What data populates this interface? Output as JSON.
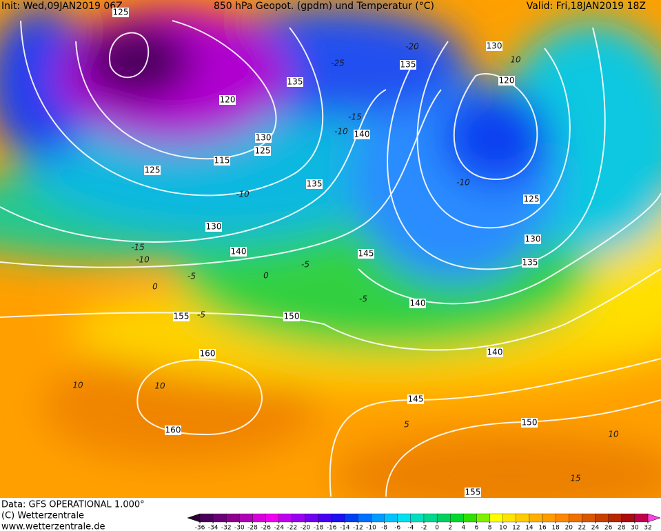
{
  "header": {
    "init": "Init: Wed,09JAN2019 06Z",
    "title": "850 hPa Geopot. (gpdm) und Temperatur (°C)",
    "valid": "Valid: Fri,18JAN2019 18Z"
  },
  "footer": {
    "data": "Data: GFS OPERATIONAL 1.000°",
    "copyright": "(C) Wetterzentrale",
    "url": "www.wetterzentrale.de"
  },
  "colorbar": {
    "labels": [
      -36,
      -34,
      -32,
      -30,
      -28,
      -26,
      -24,
      -22,
      -20,
      -18,
      -16,
      -14,
      -12,
      -10,
      -8,
      -6,
      -4,
      -2,
      0,
      2,
      4,
      6,
      8,
      10,
      12,
      14,
      16,
      18,
      20,
      22,
      24,
      26,
      28,
      30,
      32
    ],
    "colors": [
      "#2a0032",
      "#4a0058",
      "#6a0078",
      "#8c008c",
      "#b000b4",
      "#d800d8",
      "#f000f0",
      "#c000f0",
      "#9a00f0",
      "#7000f0",
      "#4800f0",
      "#1e10f0",
      "#0040f0",
      "#0070ff",
      "#009cff",
      "#00c4ff",
      "#00e0f0",
      "#00e0c0",
      "#00d890",
      "#00d060",
      "#00d830",
      "#30e000",
      "#80f000",
      "#ffff00",
      "#ffe400",
      "#ffcc00",
      "#ffb000",
      "#ff9c00",
      "#ff8800",
      "#f07000",
      "#d85800",
      "#c84000",
      "#b82800",
      "#a80c10",
      "#c00050",
      "#ff40e0"
    ]
  },
  "geopotential_labels": [
    "125",
    "120",
    "135",
    "130",
    "125",
    "115",
    "125",
    "135",
    "130",
    "140",
    "140",
    "135",
    "130",
    "120",
    "125",
    "130",
    "135",
    "145",
    "140",
    "150",
    "155",
    "160",
    "160",
    "140",
    "145",
    "150",
    "155"
  ],
  "temperature_labels": [
    "-25",
    "-20",
    "-15",
    "-10",
    "-10",
    "-15",
    "-10",
    "-5",
    "0",
    "0",
    "-5",
    "-5",
    "10",
    "10",
    "5",
    "10",
    "15",
    "10",
    "-10",
    "-5"
  ]
}
